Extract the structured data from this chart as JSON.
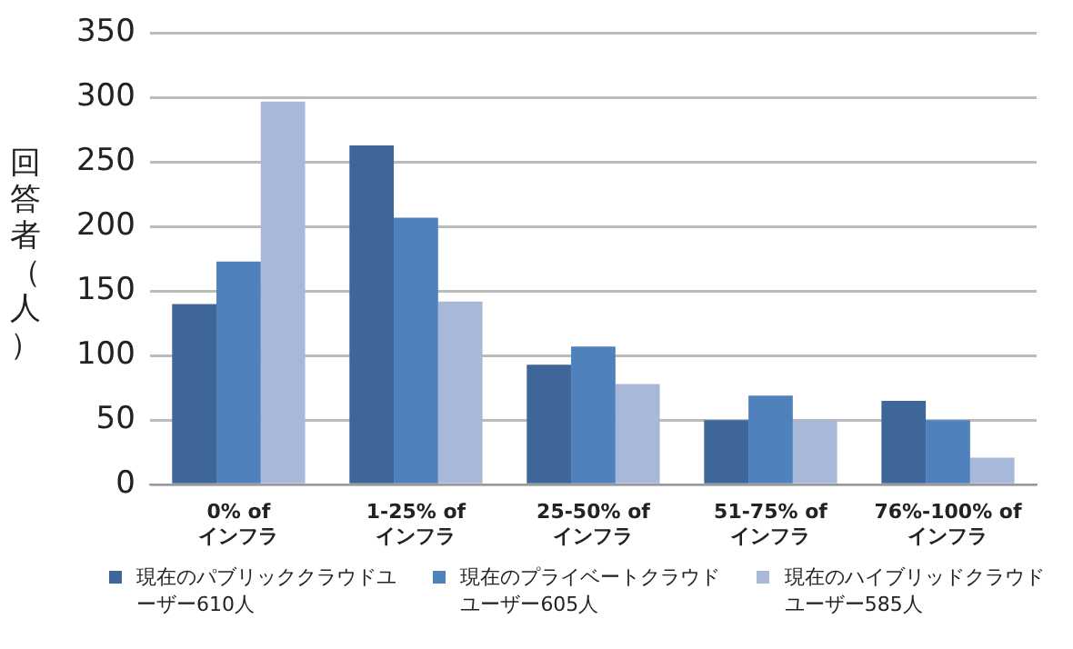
{
  "chart_data": {
    "type": "bar",
    "ylabel": "回答者（人）",
    "categories": [
      "0% of\nインフラ",
      "1-25% of\nインフラ",
      "25-50% of\nインフラ",
      "51-75% of\nインフラ",
      "76%-100% of\nインフラ"
    ],
    "series": [
      {
        "name": "現在のパブリッククラウドユーザー610人",
        "color": "#3e6699",
        "values": [
          140,
          263,
          93,
          50,
          65
        ]
      },
      {
        "name": "現在のプライベートクラウドユーザー605人",
        "color": "#4f81bd",
        "values": [
          173,
          207,
          107,
          69,
          50
        ]
      },
      {
        "name": "現在のハイブリッドクラウドユーザー585人",
        "color": "#a7b8d8",
        "values": [
          297,
          142,
          78,
          50,
          21
        ]
      }
    ],
    "ylim": [
      0,
      350
    ],
    "yticks": [
      0,
      50,
      100,
      150,
      200,
      250,
      300,
      350
    ],
    "grid": "y",
    "legend": "bottom"
  }
}
